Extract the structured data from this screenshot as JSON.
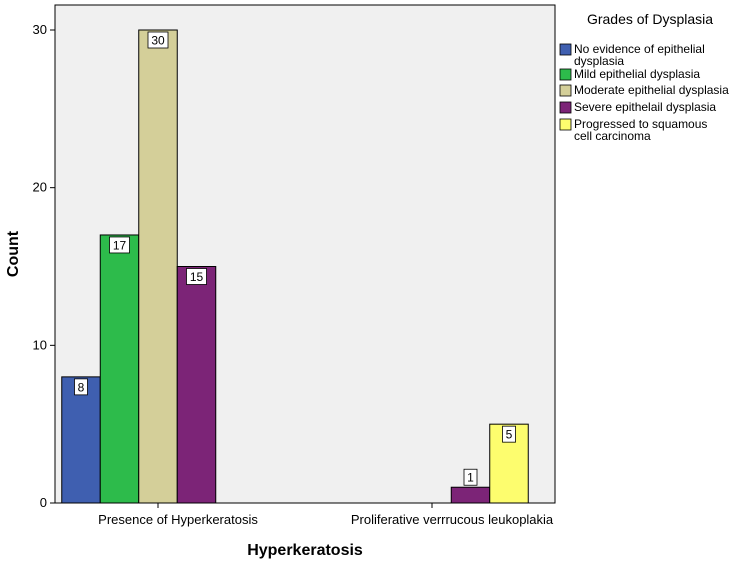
{
  "chart_data": {
    "type": "bar",
    "title": "",
    "xlabel": "Hyperkeratosis",
    "ylabel": "Count",
    "ylim": [
      0,
      30
    ],
    "yticks": [
      0,
      10,
      20,
      30
    ],
    "grid": false,
    "legend_position": "right",
    "legend_title": "Grades of Dysplasia",
    "categories": [
      "Presence of Hyperkeratosis",
      "Proliferative verrrucous leukoplakia"
    ],
    "series": [
      {
        "name": "No evidence of epithelial dysplasia",
        "legend_lines": [
          "No evidence of epithelial",
          "dysplasia"
        ],
        "color": "#3f5fb0",
        "values": [
          8,
          null
        ]
      },
      {
        "name": "Mild epithelial dysplasia",
        "legend_lines": [
          "Mild epithelial dysplasia"
        ],
        "color": "#2dbb4b",
        "values": [
          17,
          null
        ]
      },
      {
        "name": "Moderate epithelial dysplasia",
        "legend_lines": [
          "Moderate epithelial dysplasia"
        ],
        "color": "#d4cf99",
        "values": [
          30,
          null
        ]
      },
      {
        "name": "Severe epithelail dysplasia",
        "legend_lines": [
          "Severe epithelail dysplasia"
        ],
        "color": "#7c2477",
        "values": [
          15,
          1
        ]
      },
      {
        "name": "Progressed to squamous cell carcinoma",
        "legend_lines": [
          "Progressed to squamous",
          "cell carcinoma"
        ],
        "color": "#fdfd6e",
        "values": [
          null,
          5
        ]
      }
    ]
  }
}
